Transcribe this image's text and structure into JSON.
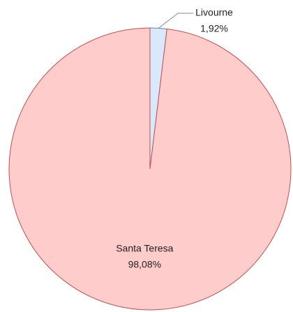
{
  "chart_data": {
    "type": "pie",
    "categories": [
      "Livourne",
      "Santa Teresa"
    ],
    "values": [
      1.92,
      98.08
    ],
    "value_labels": [
      "1,92%",
      "98,08%"
    ],
    "colors": [
      "#dae8fc",
      "#ffcccc"
    ],
    "stroke_colors": [
      "#5b7fc0",
      "#c0504d"
    ]
  }
}
